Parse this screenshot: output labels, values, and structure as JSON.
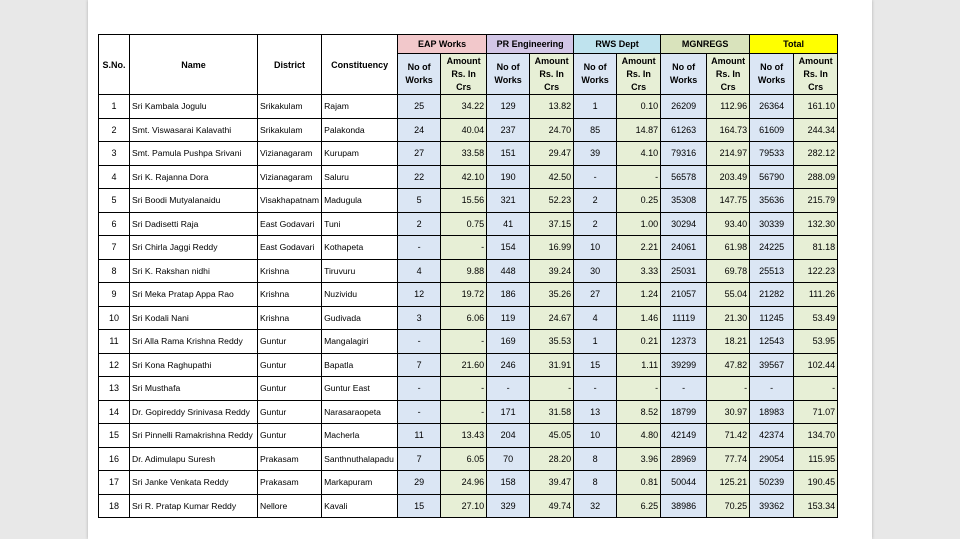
{
  "header": {
    "sno": "S.No.",
    "name": "Name",
    "district": "District",
    "constituency": "Constituency",
    "groups": {
      "eap": "EAP Works",
      "pr": "PR Engineering",
      "rws": "RWS Dept",
      "mgnregs": "MGNREGS",
      "total": "Total"
    },
    "no_of_works": "No of Works",
    "amount": "Amount Rs. In Crs"
  },
  "colors": {
    "eap": "#f2c8cb",
    "pr": "#d2c6e6",
    "rws": "#bfe3ee",
    "mgnregs": "#d9e3bc",
    "total": "#ffff00",
    "works_cell": "#dbe6f4",
    "amount_cell": "#e7efd6"
  },
  "rows": [
    {
      "sno": "1",
      "name": "Sri Kambala Jogulu",
      "district": "Srikakulam",
      "constituency": "Rajam",
      "eap_w": "25",
      "eap_a": "34.22",
      "pr_w": "129",
      "pr_a": "13.82",
      "rws_w": "1",
      "rws_a": "0.10",
      "mg_w": "26209",
      "mg_a": "112.96",
      "tot_w": "26364",
      "tot_a": "161.10"
    },
    {
      "sno": "2",
      "name": "Smt. Viswasarai Kalavathi",
      "district": "Srikakulam",
      "constituency": "Palakonda",
      "eap_w": "24",
      "eap_a": "40.04",
      "pr_w": "237",
      "pr_a": "24.70",
      "rws_w": "85",
      "rws_a": "14.87",
      "mg_w": "61263",
      "mg_a": "164.73",
      "tot_w": "61609",
      "tot_a": "244.34"
    },
    {
      "sno": "3",
      "name": "Smt. Pamula Pushpa Srivani",
      "district": "Vizianagaram",
      "constituency": "Kurupam",
      "eap_w": "27",
      "eap_a": "33.58",
      "pr_w": "151",
      "pr_a": "29.47",
      "rws_w": "39",
      "rws_a": "4.10",
      "mg_w": "79316",
      "mg_a": "214.97",
      "tot_w": "79533",
      "tot_a": "282.12"
    },
    {
      "sno": "4",
      "name": "Sri K. Rajanna Dora",
      "district": "Vizianagaram",
      "constituency": "Saluru",
      "eap_w": "22",
      "eap_a": "42.10",
      "pr_w": "190",
      "pr_a": "42.50",
      "rws_w": "-",
      "rws_a": "-",
      "mg_w": "56578",
      "mg_a": "203.49",
      "tot_w": "56790",
      "tot_a": "288.09"
    },
    {
      "sno": "5",
      "name": "Sri Boodi Mutyalanaidu",
      "district": "Visakhapatnam",
      "constituency": "Madugula",
      "eap_w": "5",
      "eap_a": "15.56",
      "pr_w": "321",
      "pr_a": "52.23",
      "rws_w": "2",
      "rws_a": "0.25",
      "mg_w": "35308",
      "mg_a": "147.75",
      "tot_w": "35636",
      "tot_a": "215.79"
    },
    {
      "sno": "6",
      "name": "Sri Dadisetti Raja",
      "district": "East Godavari",
      "constituency": "Tuni",
      "eap_w": "2",
      "eap_a": "0.75",
      "pr_w": "41",
      "pr_a": "37.15",
      "rws_w": "2",
      "rws_a": "1.00",
      "mg_w": "30294",
      "mg_a": "93.40",
      "tot_w": "30339",
      "tot_a": "132.30"
    },
    {
      "sno": "7",
      "name": "Sri Chirla Jaggi Reddy",
      "district": "East Godavari",
      "constituency": "Kothapeta",
      "eap_w": "-",
      "eap_a": "-",
      "pr_w": "154",
      "pr_a": "16.99",
      "rws_w": "10",
      "rws_a": "2.21",
      "mg_w": "24061",
      "mg_a": "61.98",
      "tot_w": "24225",
      "tot_a": "81.18"
    },
    {
      "sno": "8",
      "name": "Sri K. Rakshan nidhi",
      "district": "Krishna",
      "constituency": "Tiruvuru",
      "eap_w": "4",
      "eap_a": "9.88",
      "pr_w": "448",
      "pr_a": "39.24",
      "rws_w": "30",
      "rws_a": "3.33",
      "mg_w": "25031",
      "mg_a": "69.78",
      "tot_w": "25513",
      "tot_a": "122.23"
    },
    {
      "sno": "9",
      "name": "Sri Meka Pratap Appa Rao",
      "district": "Krishna",
      "constituency": "Nuzividu",
      "eap_w": "12",
      "eap_a": "19.72",
      "pr_w": "186",
      "pr_a": "35.26",
      "rws_w": "27",
      "rws_a": "1.24",
      "mg_w": "21057",
      "mg_a": "55.04",
      "tot_w": "21282",
      "tot_a": "111.26"
    },
    {
      "sno": "10",
      "name": "Sri Kodali Nani",
      "district": "Krishna",
      "constituency": "Gudivada",
      "eap_w": "3",
      "eap_a": "6.06",
      "pr_w": "119",
      "pr_a": "24.67",
      "rws_w": "4",
      "rws_a": "1.46",
      "mg_w": "11119",
      "mg_a": "21.30",
      "tot_w": "11245",
      "tot_a": "53.49"
    },
    {
      "sno": "11",
      "name": "Sri Alla Rama Krishna Reddy",
      "district": "Guntur",
      "constituency": "Mangalagiri",
      "eap_w": "-",
      "eap_a": "-",
      "pr_w": "169",
      "pr_a": "35.53",
      "rws_w": "1",
      "rws_a": "0.21",
      "mg_w": "12373",
      "mg_a": "18.21",
      "tot_w": "12543",
      "tot_a": "53.95"
    },
    {
      "sno": "12",
      "name": "Sri Kona Raghupathi",
      "district": "Guntur",
      "constituency": "Bapatla",
      "eap_w": "7",
      "eap_a": "21.60",
      "pr_w": "246",
      "pr_a": "31.91",
      "rws_w": "15",
      "rws_a": "1.11",
      "mg_w": "39299",
      "mg_a": "47.82",
      "tot_w": "39567",
      "tot_a": "102.44"
    },
    {
      "sno": "13",
      "name": "Sri Musthafa",
      "district": "Guntur",
      "constituency": "Guntur East",
      "eap_w": "-",
      "eap_a": "-",
      "pr_w": "-",
      "pr_a": "-",
      "rws_w": "-",
      "rws_a": "-",
      "mg_w": "-",
      "mg_a": "-",
      "tot_w": "-",
      "tot_a": "-"
    },
    {
      "sno": "14",
      "name": "Dr. Gopireddy Srinivasa Reddy",
      "district": "Guntur",
      "constituency": "Narasaraopeta",
      "eap_w": "-",
      "eap_a": "-",
      "pr_w": "171",
      "pr_a": "31.58",
      "rws_w": "13",
      "rws_a": "8.52",
      "mg_w": "18799",
      "mg_a": "30.97",
      "tot_w": "18983",
      "tot_a": "71.07"
    },
    {
      "sno": "15",
      "name": "Sri Pinnelli Ramakrishna Reddy",
      "district": "Guntur",
      "constituency": "Macherla",
      "eap_w": "11",
      "eap_a": "13.43",
      "pr_w": "204",
      "pr_a": "45.05",
      "rws_w": "10",
      "rws_a": "4.80",
      "mg_w": "42149",
      "mg_a": "71.42",
      "tot_w": "42374",
      "tot_a": "134.70"
    },
    {
      "sno": "16",
      "name": "Dr. Adimulapu Suresh",
      "district": "Prakasam",
      "constituency": "Santhnuthalapadu",
      "eap_w": "7",
      "eap_a": "6.05",
      "pr_w": "70",
      "pr_a": "28.20",
      "rws_w": "8",
      "rws_a": "3.96",
      "mg_w": "28969",
      "mg_a": "77.74",
      "tot_w": "29054",
      "tot_a": "115.95"
    },
    {
      "sno": "17",
      "name": "Sri Janke Venkata Reddy",
      "district": "Prakasam",
      "constituency": "Markapuram",
      "eap_w": "29",
      "eap_a": "24.96",
      "pr_w": "158",
      "pr_a": "39.47",
      "rws_w": "8",
      "rws_a": "0.81",
      "mg_w": "50044",
      "mg_a": "125.21",
      "tot_w": "50239",
      "tot_a": "190.45"
    },
    {
      "sno": "18",
      "name": "Sri R. Pratap Kumar Reddy",
      "district": "Nellore",
      "constituency": "Kavali",
      "eap_w": "15",
      "eap_a": "27.10",
      "pr_w": "329",
      "pr_a": "49.74",
      "rws_w": "32",
      "rws_a": "6.25",
      "mg_w": "38986",
      "mg_a": "70.25",
      "tot_w": "39362",
      "tot_a": "153.34"
    }
  ]
}
